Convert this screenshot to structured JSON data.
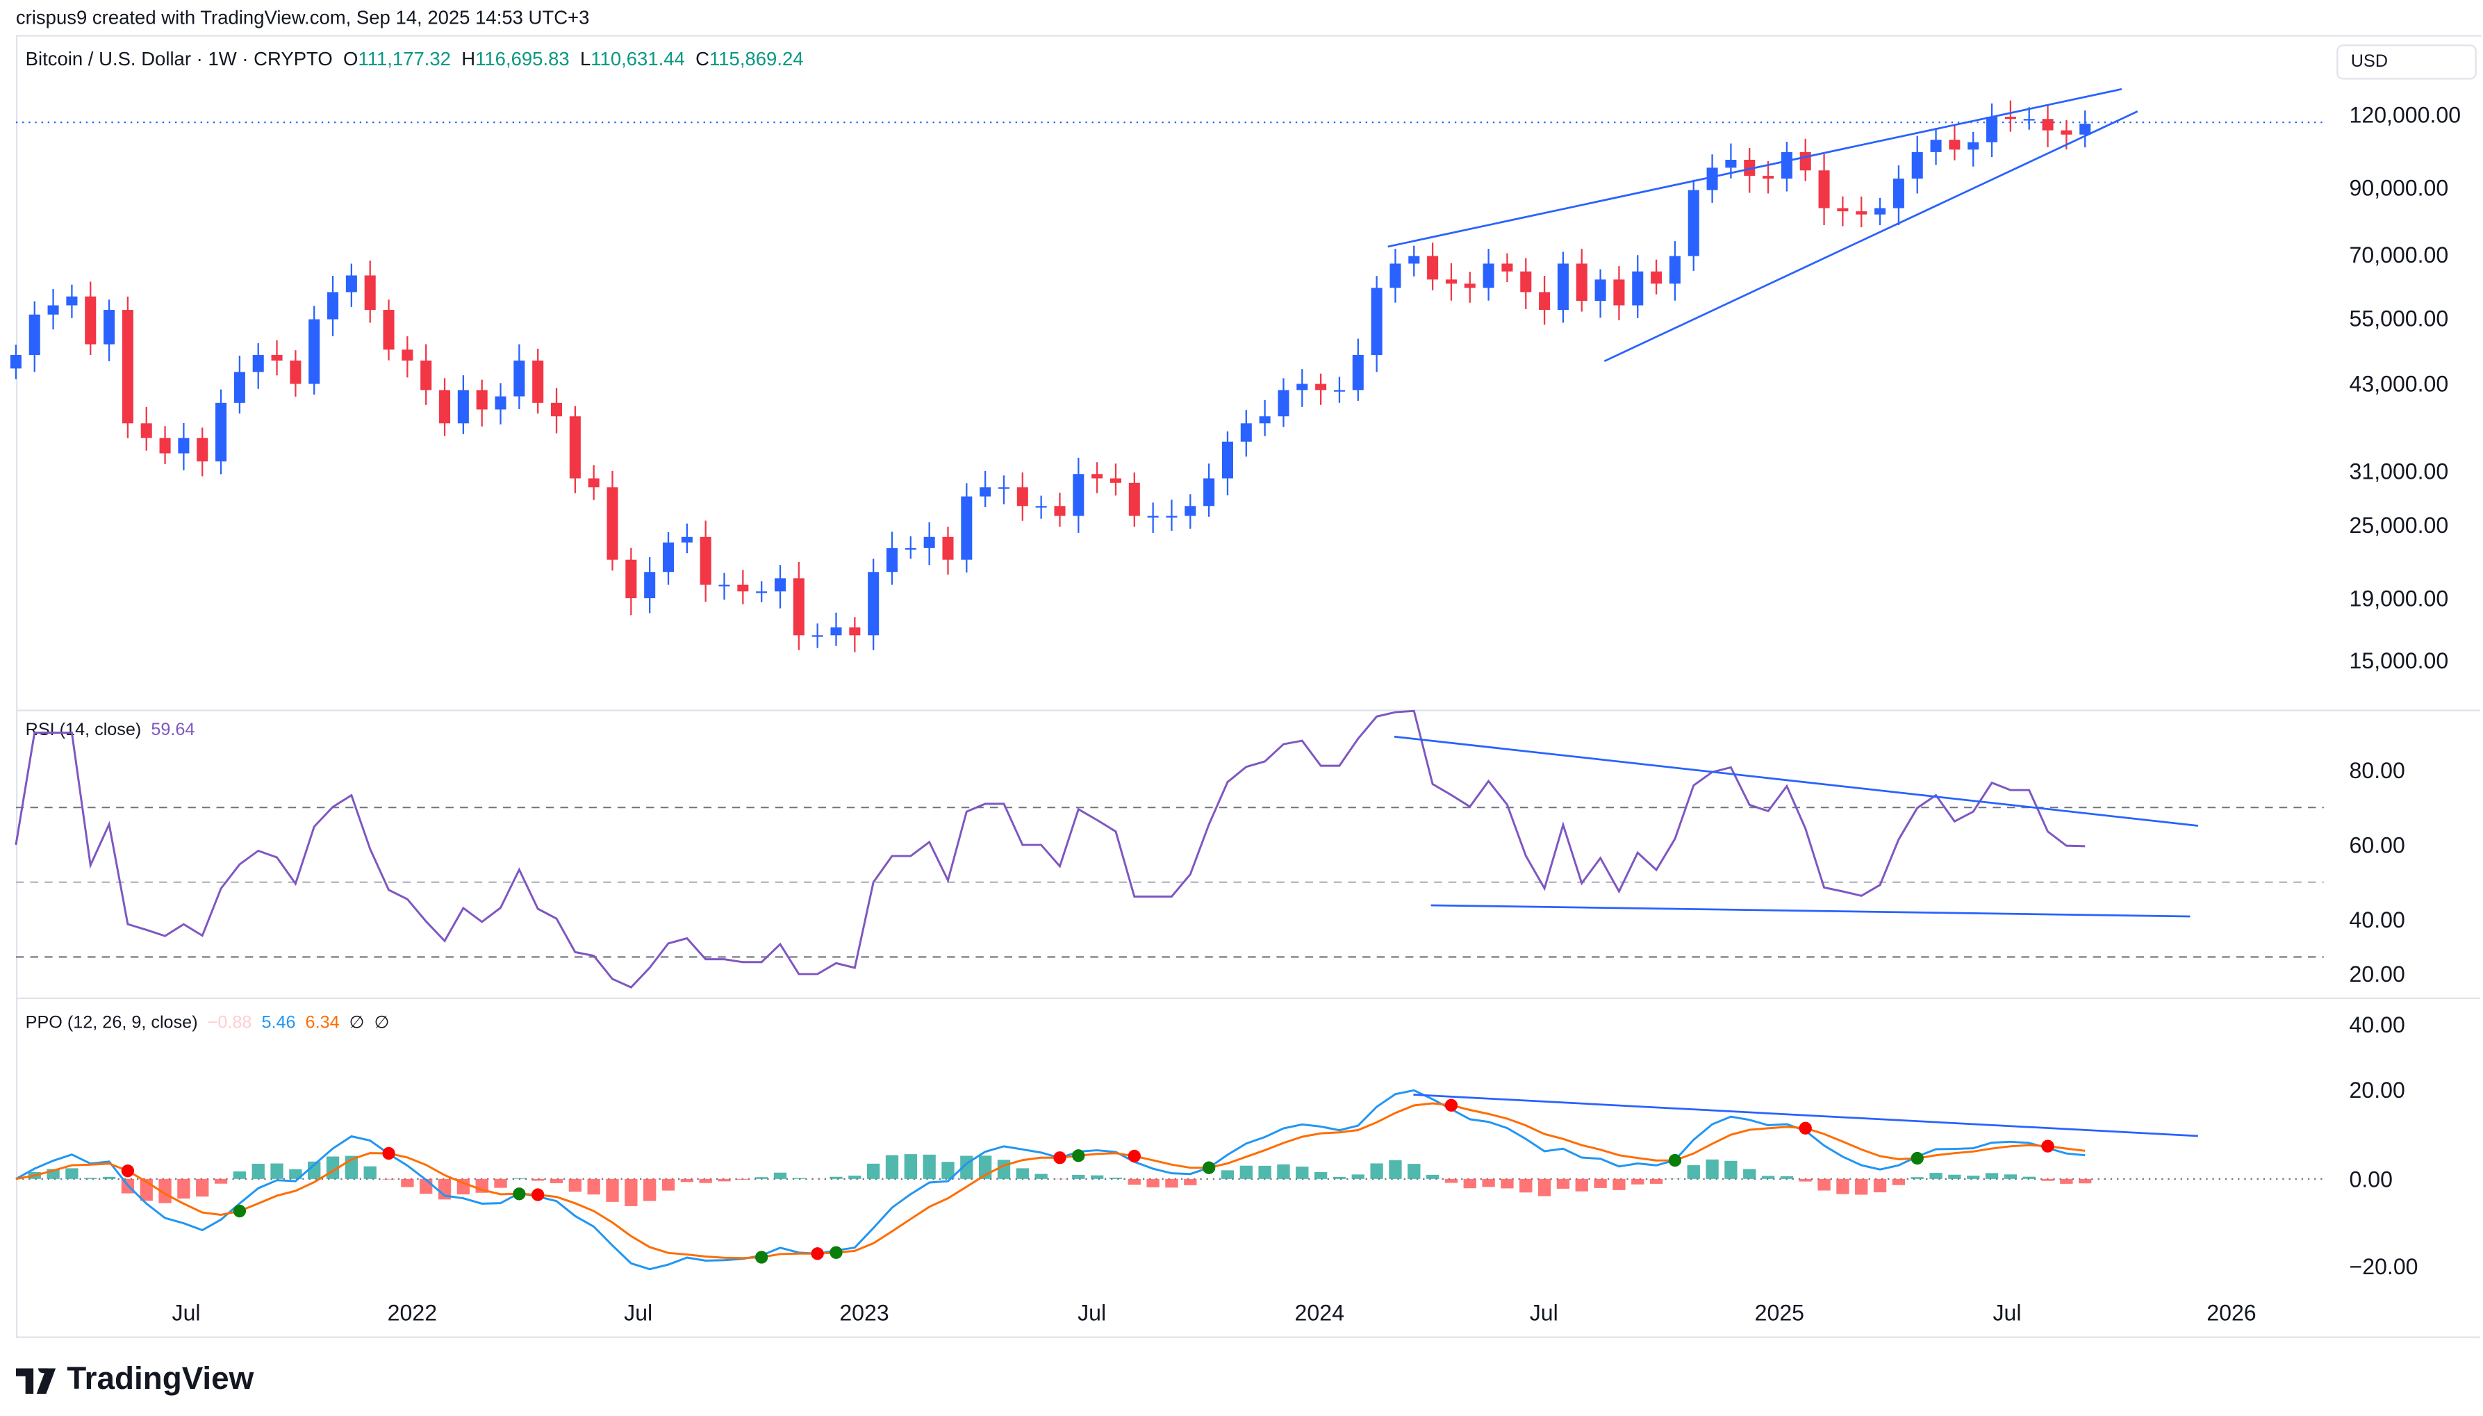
{
  "credit": "crispus9 created with TradingView.com, Sep 14, 2025 14:53 UTC+3",
  "symbol": {
    "name": "Bitcoin / U.S. Dollar",
    "interval": "1W",
    "exchange": "CRYPTO",
    "sep": " · ",
    "o_label": "O",
    "open": "111,177.32",
    "h_label": "H",
    "high": "116,695.83",
    "l_label": "L",
    "low": "110,631.44",
    "c_label": "C",
    "close": "115,869.24"
  },
  "currency": "USD",
  "price_axis": [
    "120,000.00",
    "90,000.00",
    "70,000.00",
    "55,000.00",
    "43,000.00",
    "31,000.00",
    "25,000.00",
    "19,000.00",
    "15,000.00"
  ],
  "rsi": {
    "label": "RSI (14, close)",
    "value": "59.64",
    "axis": [
      "80.00",
      "60.00",
      "40.00",
      "20.00"
    ]
  },
  "ppo": {
    "label": "PPO (12, 26, 9, close)",
    "hist": "−0.88",
    "ppo": "5.46",
    "signal": "6.34",
    "na1": "∅",
    "na2": "∅",
    "axis": [
      "40.00",
      "20.00",
      "0.00",
      "−20.00"
    ]
  },
  "time_axis": [
    "Jul",
    "2022",
    "Jul",
    "2023",
    "Jul",
    "2024",
    "Jul",
    "2025",
    "Jul",
    "2026"
  ],
  "brand": "TradingView",
  "colors": {
    "up": "#2962ff",
    "down": "#f23645",
    "rsi": "#7e57c2",
    "ppo": "#2196f3",
    "signal": "#ff6d00",
    "hist_up": "#26a69a",
    "hist_down": "#ff5252",
    "trend": "#2962ff"
  },
  "chart_data": {
    "type": "candlestick",
    "title": "Bitcoin / U.S. Dollar · 1W · CRYPTO",
    "x_range": [
      "2021-02",
      "2025-09"
    ],
    "y_scale": "log",
    "ylim": [
      13000,
      135000
    ],
    "closes_biweekly": [
      48000,
      56000,
      58000,
      60000,
      50000,
      57000,
      37000,
      35000,
      33000,
      35000,
      32000,
      40000,
      45000,
      48000,
      47000,
      43000,
      55000,
      61000,
      65000,
      57000,
      49000,
      47000,
      42000,
      37000,
      42000,
      39000,
      41000,
      47000,
      40000,
      38000,
      30000,
      29000,
      22000,
      19000,
      21000,
      23500,
      24000,
      20000,
      20000,
      19500,
      19500,
      20500,
      16500,
      16500,
      17000,
      16500,
      21000,
      23000,
      23000,
      24000,
      22000,
      28000,
      29000,
      29000,
      27000,
      27000,
      26000,
      30500,
      30000,
      29500,
      26000,
      26000,
      26000,
      27000,
      30000,
      34500,
      37000,
      38000,
      42000,
      43000,
      42000,
      42000,
      48000,
      62000,
      68000,
      70000,
      64000,
      63000,
      62000,
      68000,
      66000,
      61000,
      57000,
      68000,
      59000,
      64000,
      58000,
      66000,
      63000,
      70000,
      90000,
      98000,
      101000,
      95000,
      94000,
      104000,
      97000,
      84000,
      83000,
      82000,
      84000,
      94000,
      104000,
      109000,
      105000,
      108000,
      119000,
      118000,
      118000,
      113000,
      111177,
      115869
    ],
    "indicators": {
      "rsi_last": 59.64,
      "ppo_last": 5.46,
      "signal_last": 6.34,
      "hist_last": -0.88,
      "rsi_levels": [
        70,
        50,
        30
      ]
    }
  }
}
